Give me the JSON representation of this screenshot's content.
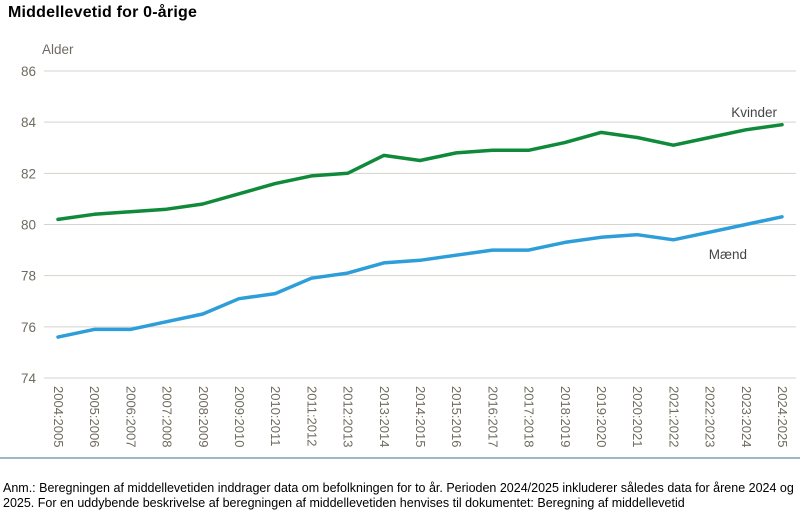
{
  "title": "Middellevetid for 0-årige",
  "chart_data": {
    "type": "line",
    "title": "Middellevetid for 0-årige",
    "ylabel": "Alder",
    "xlabel": "",
    "ylim": [
      74,
      86
    ],
    "ytick_step": 2,
    "ytick_labels": [
      "74",
      "76",
      "78",
      "80",
      "82",
      "84",
      "86"
    ],
    "grid": "horizontal",
    "legend_position": "end-of-line",
    "categories": [
      "2004:2005",
      "2005:2006",
      "2006:2007",
      "2007:2008",
      "2008:2009",
      "2009:2010",
      "2010:2011",
      "2011:2012",
      "2012:2013",
      "2013:2014",
      "2014:2015",
      "2015:2016",
      "2016:2017",
      "2017:2018",
      "2018:2019",
      "2019:2020",
      "2020:2021",
      "2021:2022",
      "2022:2023",
      "2023:2024",
      "2024:2025"
    ],
    "series": [
      {
        "name": "Kvinder",
        "color": "#0f8a3a",
        "values": [
          80.2,
          80.4,
          80.5,
          80.6,
          80.8,
          81.2,
          81.6,
          81.9,
          82.0,
          82.7,
          82.5,
          82.8,
          82.9,
          82.9,
          83.2,
          83.6,
          83.4,
          83.1,
          83.4,
          83.7,
          83.9
        ]
      },
      {
        "name": "Mænd",
        "color": "#2d9ed9",
        "values": [
          75.6,
          75.9,
          75.9,
          76.2,
          76.5,
          77.1,
          77.3,
          77.9,
          78.1,
          78.5,
          78.6,
          78.8,
          79.0,
          79.0,
          79.3,
          79.5,
          79.6,
          79.4,
          79.7,
          80.0,
          80.3
        ]
      }
    ]
  },
  "footnote": "Anm.: Beregningen af middellevetiden inddrager data om befolkningen for to år. Perioden 2024/2025 inkluderer således data for årene 2024 og 2025. For en uddybende beskrivelse af beregningen af middellevetiden henvises til dokumentet: Beregning af middellevetid",
  "colors": {
    "kvinder_line": "#0f8a3a",
    "maend_line": "#2d9ed9",
    "gridline": "#d6d3cc",
    "tick_text": "#6f6b60",
    "series_label_text": "#454545",
    "separator": "#9fb6c6"
  }
}
